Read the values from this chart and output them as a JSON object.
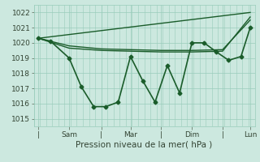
{
  "xlabel": "Pression niveau de la mer( hPa )",
  "bg_color": "#cce8df",
  "grid_color": "#99ccbb",
  "line_color": "#1a5c2a",
  "ylim": [
    1014.5,
    1022.5
  ],
  "yticks": [
    1015,
    1016,
    1017,
    1018,
    1019,
    1020,
    1021,
    1022
  ],
  "xlim": [
    0,
    7.2
  ],
  "xtick_positions": [
    0.15,
    1.15,
    2.2,
    3.15,
    4.15,
    5.15,
    6.15,
    7.05
  ],
  "xtick_labels": [
    "|",
    "Sam",
    "|",
    "Mar",
    "|",
    "Dim",
    "|",
    "Lun"
  ],
  "series_main": {
    "x": [
      0.15,
      0.55,
      1.15,
      1.55,
      1.95,
      2.35,
      2.75,
      3.15,
      3.55,
      3.95,
      4.35,
      4.75,
      5.15,
      5.55,
      5.95,
      6.35,
      6.75,
      7.05
    ],
    "y": [
      1020.3,
      1020.1,
      1019.0,
      1017.1,
      1015.8,
      1015.8,
      1016.1,
      1019.1,
      1017.5,
      1016.1,
      1018.5,
      1016.7,
      1020.0,
      1020.0,
      1019.4,
      1018.85,
      1019.1,
      1021.0
    ],
    "marker": "D",
    "markersize": 2.5,
    "lw": 1.2
  },
  "series_trend1": {
    "x": [
      0.15,
      7.05
    ],
    "y": [
      1020.3,
      1022.0
    ],
    "lw": 1.0
  },
  "series_trend2": {
    "x": [
      0.15,
      1.15,
      2.2,
      3.15,
      4.15,
      5.15,
      6.15,
      7.05
    ],
    "y": [
      1020.3,
      1019.8,
      1019.6,
      1019.55,
      1019.5,
      1019.5,
      1019.55,
      1021.5
    ],
    "lw": 1.0
  },
  "series_trend3": {
    "x": [
      0.15,
      1.15,
      2.2,
      3.15,
      4.15,
      5.15,
      6.15,
      7.05
    ],
    "y": [
      1020.3,
      1019.65,
      1019.5,
      1019.45,
      1019.4,
      1019.4,
      1019.45,
      1021.7
    ],
    "lw": 1.0
  }
}
